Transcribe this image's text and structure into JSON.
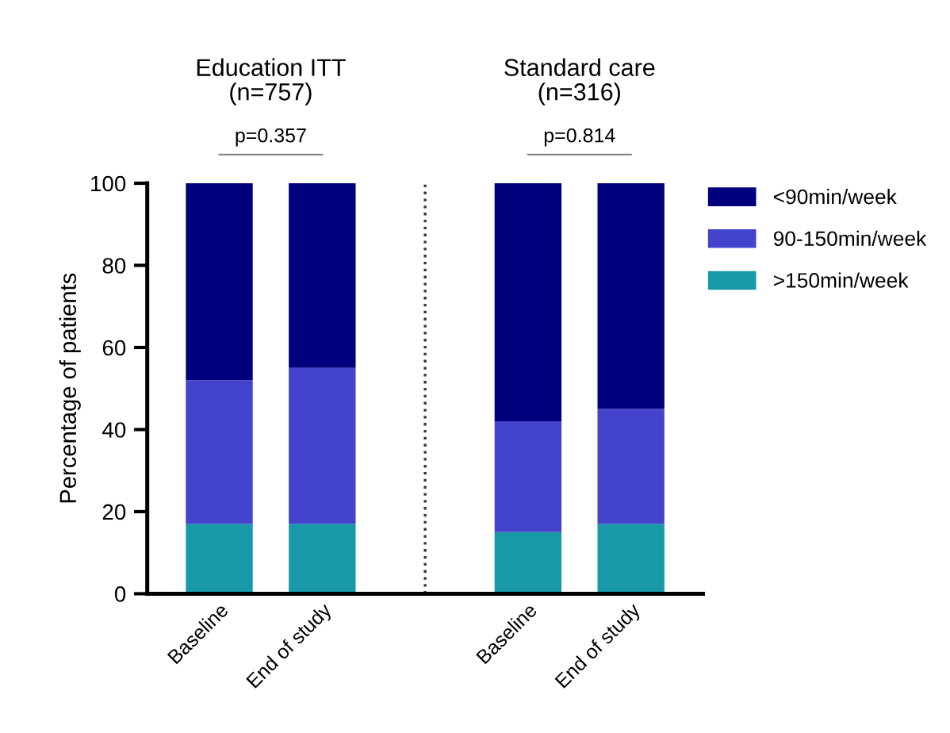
{
  "chart_data": {
    "type": "bar",
    "stacked": true,
    "ylabel": "Percentage of patients",
    "categories": [
      "Baseline",
      "End of study",
      "Baseline",
      "End of study"
    ],
    "series": [
      {
        "name": ">150min/week",
        "color": "#1799a8",
        "values": [
          17,
          17,
          15,
          17
        ]
      },
      {
        "name": "90-150min/week",
        "color": "#4343cc",
        "values": [
          35,
          38,
          27,
          28
        ]
      },
      {
        "name": "<90min/week",
        "color": "#00007f",
        "values": [
          48,
          45,
          58,
          55
        ]
      }
    ],
    "ylim": [
      0,
      100
    ],
    "yticks": [
      0,
      20,
      40,
      60,
      80,
      100
    ],
    "annotations": [
      "Education ITT\n(n=757)",
      "Standard care\n(n=316)",
      "p=0.357",
      "p=0.814"
    ],
    "legend": "top right",
    "grid": false
  }
}
